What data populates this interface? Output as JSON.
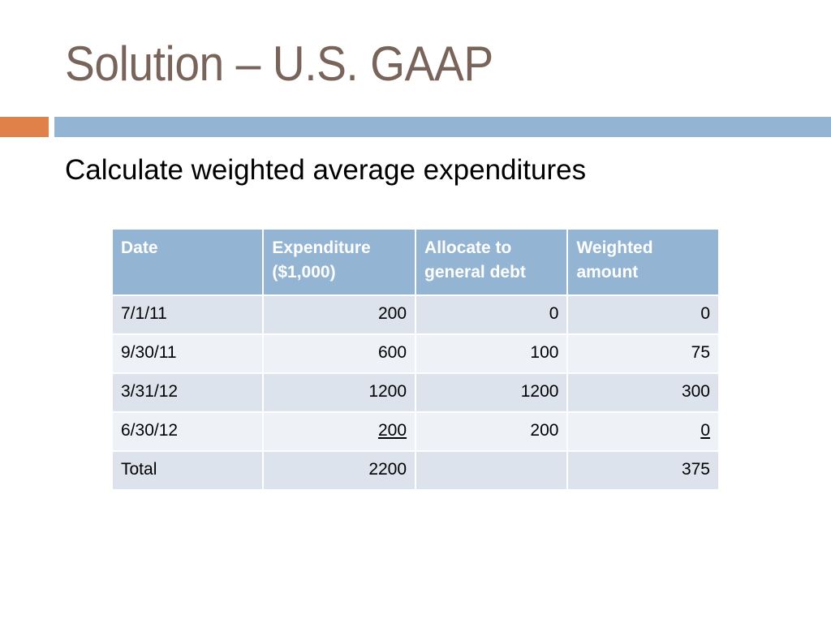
{
  "slide": {
    "title": "Solution – U.S. GAAP",
    "subtitle": "Calculate weighted average expenditures",
    "colors": {
      "title": "#78645a",
      "accent_orange": "#df8148",
      "accent_blue": "#93b5d3",
      "row_odd": "#dce3ec",
      "row_even": "#eef2f6"
    }
  },
  "table": {
    "headers": [
      "Date",
      "Expenditure ($1,000)",
      "Allocate to general debt",
      "Weighted amount"
    ],
    "header_lines": [
      [
        "Date"
      ],
      [
        "Expenditure",
        "($1,000)"
      ],
      [
        "Allocate to",
        "general debt"
      ],
      [
        "Weighted",
        "amount"
      ]
    ],
    "rows": [
      {
        "date": "7/1/11",
        "expenditure": "200",
        "allocate": "0",
        "weighted": "0"
      },
      {
        "date": "9/30/11",
        "expenditure": "600",
        "allocate": "100",
        "weighted": "75"
      },
      {
        "date": "3/31/12",
        "expenditure": "1200",
        "allocate": "1200",
        "weighted": "300"
      },
      {
        "date": "6/30/12",
        "expenditure": "200",
        "allocate": "200",
        "weighted": "0"
      },
      {
        "date": "Total",
        "expenditure": "2200",
        "allocate": "",
        "weighted": "375"
      }
    ]
  }
}
